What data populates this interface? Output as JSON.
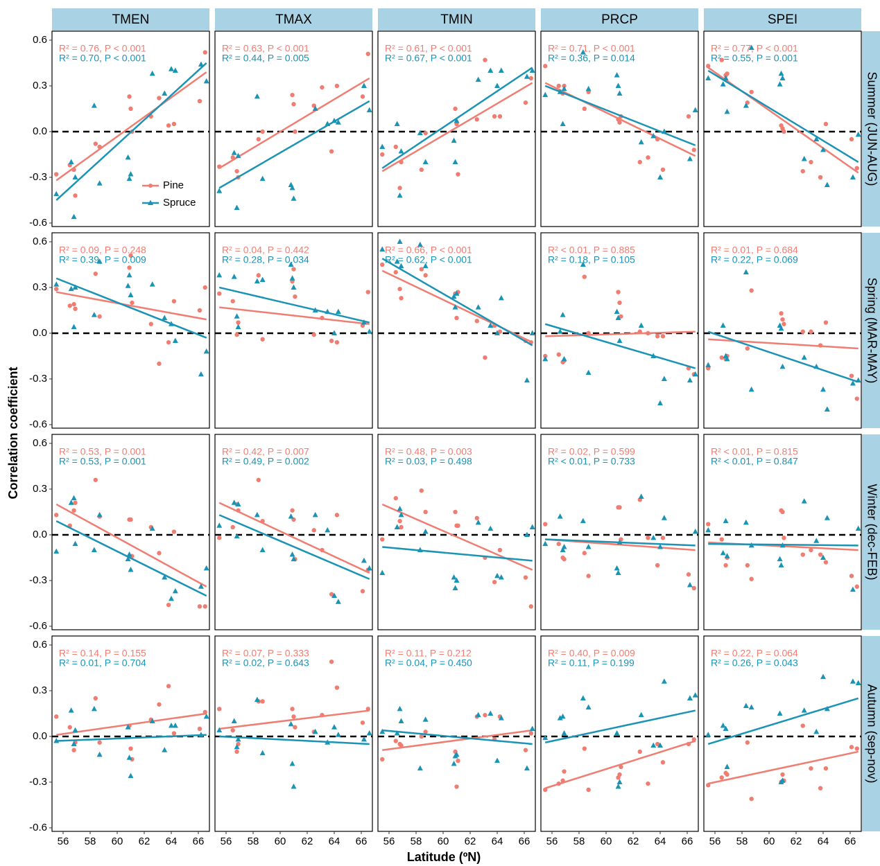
{
  "chart_data": {
    "type": "scatter",
    "x_label": "Latitude (ºN)",
    "y_label": "Correlation coefficient",
    "xlim": [
      55.18,
      66.82
    ],
    "xticks": [
      56,
      58,
      60,
      62,
      64,
      66
    ],
    "ylim": [
      -0.623,
      0.659
    ],
    "yticks": [
      -0.6,
      -0.3,
      {
        "value": 0,
        "label": "0.0"
      },
      0.3,
      0.6
    ],
    "hline": 0,
    "fit_x": [
      55.5,
      66.6
    ],
    "legend": "lower-left",
    "columns": [
      "TMEN",
      "TMAX",
      "TMIN",
      "PRCP",
      "SPEI"
    ],
    "rows": [
      "Summer (JUN-AUG)",
      "Spring (MAR-MAY)",
      "Winter (dec-FEB)",
      "Autumn (sep-nov)"
    ],
    "series": [
      {
        "name": "Pine",
        "color": "#f07d72",
        "x": [
          55.5,
          56.5,
          56.8,
          56.9,
          58.4,
          58.7,
          60.9,
          61.0,
          61.1,
          62.5,
          63.1,
          63.8,
          64.2,
          66.1,
          66.5
        ]
      },
      {
        "name": "Spruce",
        "color": "#1a93b4",
        "x": [
          55.5,
          56.6,
          56.8,
          56.9,
          58.3,
          58.7,
          60.8,
          60.9,
          61.0,
          62.6,
          63.5,
          64.0,
          64.3,
          66.2,
          66.6
        ]
      }
    ],
    "panels": [
      {
        "values": [
          [
            -0.28,
            -0.22,
            -0.25,
            -0.42,
            -0.08,
            -0.1,
            0.23,
            0.15,
            0.0,
            0.1,
            0.22,
            0.04,
            0.05,
            0.2,
            0.52
          ],
          [
            -0.41,
            -0.2,
            -0.56,
            -0.3,
            0.17,
            -0.34,
            -0.17,
            -0.31,
            -0.28,
            0.38,
            0.25,
            0.41,
            0.4,
            0.44,
            0.33
          ]
        ],
        "fit": [
          [
            -0.32,
            0.39
          ],
          [
            -0.45,
            0.45
          ]
        ],
        "stats": [
          "R² = 0.76, P < 0.001",
          "R² = 0.70, P < 0.001"
        ]
      },
      {
        "values": [
          [
            -0.23,
            -0.17,
            -0.26,
            -0.3,
            -0.05,
            0.0,
            0.24,
            0.18,
            0.0,
            0.17,
            0.29,
            -0.13,
            0.3,
            0.23,
            0.51
          ],
          [
            -0.39,
            -0.14,
            -0.5,
            -0.16,
            0.23,
            -0.31,
            -0.35,
            -0.37,
            -0.44,
            0.15,
            0.05,
            0.07,
            0.06,
            0.3,
            0.14
          ]
        ],
        "fit": [
          [
            -0.24,
            0.35
          ],
          [
            -0.37,
            0.2
          ]
        ],
        "stats": [
          "R² = 0.63, P < 0.001",
          "R² = 0.44, P = 0.005"
        ]
      },
      {
        "values": [
          [
            -0.15,
            -0.1,
            -0.37,
            -0.2,
            -0.25,
            -0.01,
            0.15,
            0.05,
            -0.28,
            0.08,
            0.47,
            0.1,
            0.1,
            0.19,
            0.35
          ],
          [
            -0.1,
            0.05,
            -0.42,
            -0.13,
            -0.01,
            -0.2,
            -0.06,
            -0.2,
            0.07,
            0.34,
            0.4,
            0.3,
            0.4,
            0.36,
            0.4
          ]
        ],
        "fit": [
          [
            -0.26,
            0.32
          ],
          [
            -0.24,
            0.42
          ]
        ],
        "stats": [
          "R² = 0.61, P < 0.001",
          "R² = 0.67, P < 0.001"
        ]
      },
      {
        "values": [
          [
            0.43,
            0.3,
            0.25,
            0.3,
            0.15,
            0.26,
            0.08,
            0.06,
            0.1,
            -0.2,
            -0.17,
            -0.05,
            -0.25,
            0.1,
            -0.12
          ],
          [
            0.24,
            0.26,
            0.05,
            0.28,
            0.52,
            0.28,
            0.37,
            0.3,
            0.25,
            -0.07,
            -0.03,
            -0.3,
            0.0,
            -0.18,
            0.14
          ]
        ],
        "fit": [
          [
            0.32,
            -0.16
          ],
          [
            0.3,
            -0.09
          ]
        ],
        "stats": [
          "R² = 0.71, P < 0.001",
          "R² = 0.36, P = 0.014"
        ]
      },
      {
        "values": [
          [
            0.43,
            0.47,
            0.37,
            0.38,
            0.19,
            0.26,
            0.04,
            0.02,
            0.0,
            -0.26,
            -0.2,
            -0.3,
            0.05,
            -0.05,
            -0.24
          ],
          [
            0.35,
            0.31,
            0.35,
            0.13,
            0.17,
            0.55,
            0.31,
            0.38,
            0.35,
            -0.18,
            -0.05,
            -0.12,
            -0.35,
            -0.3,
            -0.02
          ]
        ],
        "fit": [
          [
            0.42,
            -0.27
          ],
          [
            0.4,
            -0.2
          ]
        ],
        "stats": [
          "R² = 0.77, P < 0.001",
          "R² = 0.55, P = 0.001"
        ]
      },
      {
        "values": [
          [
            0.29,
            0.18,
            0.19,
            0.16,
            0.39,
            0.11,
            0.43,
            0.51,
            0.2,
            0.06,
            -0.2,
            -0.06,
            0.21,
            0.15,
            0.3
          ],
          [
            0.32,
            0.29,
            0.04,
            0.3,
            0.12,
            0.47,
            0.31,
            0.38,
            0.25,
            0.32,
            0.1,
            0.06,
            -0.05,
            -0.27,
            -0.12
          ]
        ],
        "fit": [
          [
            0.27,
            0.09
          ],
          [
            0.36,
            -0.03
          ]
        ],
        "stats": [
          "R² = 0.09, P = 0.248",
          "R² = 0.39, P = 0.009"
        ]
      },
      {
        "values": [
          [
            0.26,
            0.21,
            -0.01,
            0.07,
            0.38,
            -0.04,
            0.34,
            0.42,
            0.24,
            -0.01,
            0.1,
            -0.05,
            -0.06,
            0.05,
            0.27
          ],
          [
            0.38,
            0.37,
            0.11,
            0.04,
            0.34,
            0.35,
            0.45,
            0.36,
            0.3,
            0.15,
            0.14,
            0.0,
            0.14,
            0.07,
            0.01
          ]
        ],
        "fit": [
          [
            0.17,
            0.06
          ],
          [
            0.3,
            0.07
          ]
        ],
        "stats": [
          "R² = 0.04, P = 0.442",
          "R² = 0.28, P = 0.034"
        ]
      },
      {
        "values": [
          [
            0.45,
            0.4,
            0.29,
            0.23,
            0.42,
            0.38,
            0.26,
            0.1,
            0.27,
            0.08,
            -0.16,
            0.05,
            0.01,
            -0.05,
            -0.06
          ],
          [
            0.55,
            0.47,
            0.6,
            0.44,
            0.58,
            0.44,
            0.24,
            0.17,
            0.26,
            0.17,
            0.05,
            0.0,
            0.23,
            -0.31,
            0.0
          ]
        ],
        "fit": [
          [
            0.41,
            -0.06
          ],
          [
            0.49,
            -0.08
          ]
        ],
        "stats": [
          "R² = 0.66, P < 0.001",
          "R² = 0.62, P < 0.001"
        ]
      },
      {
        "values": [
          [
            -0.15,
            -0.14,
            -0.19,
            -0.18,
            0.37,
            0.0,
            0.27,
            0.2,
            0.11,
            0.01,
            0.0,
            -0.02,
            -0.02,
            -0.23,
            -0.27
          ],
          [
            -0.17,
            0.01,
            0.12,
            -0.17,
            0.45,
            -0.26,
            0.14,
            0.1,
            -0.05,
            0.05,
            -0.15,
            -0.46,
            -0.3,
            -0.31,
            -0.27
          ]
        ],
        "fit": [
          [
            -0.02,
            0.01
          ],
          [
            0.06,
            -0.23
          ]
        ],
        "stats": [
          "R² < 0.01, P = 0.885",
          "R² = 0.18, P = 0.105"
        ]
      },
      {
        "values": [
          [
            -0.23,
            -0.16,
            -0.17,
            -0.15,
            -0.1,
            0.28,
            0.13,
            0.09,
            0.06,
            0.01,
            0.01,
            -0.08,
            0.07,
            -0.28,
            -0.43
          ],
          [
            -0.21,
            0.05,
            -0.15,
            -0.17,
            0.4,
            -0.37,
            0.05,
            0.03,
            -0.22,
            -0.16,
            -0.22,
            -0.37,
            -0.5,
            -0.33,
            -0.31
          ]
        ],
        "fit": [
          [
            -0.04,
            -0.1
          ],
          [
            0.01,
            -0.32
          ]
        ],
        "stats": [
          "R² = 0.01, P = 0.684",
          "R² = 0.22, P = 0.069"
        ]
      },
      {
        "values": [
          [
            0.13,
            0.06,
            0.16,
            0.21,
            0.36,
            0.12,
            0.1,
            0.1,
            -0.14,
            0.05,
            -0.12,
            -0.46,
            0.02,
            -0.47,
            -0.47
          ],
          [
            -0.11,
            0.21,
            0.24,
            -0.06,
            -0.1,
            0.13,
            -0.16,
            -0.13,
            -0.23,
            0.04,
            -0.28,
            -0.42,
            -0.37,
            -0.34,
            -0.22
          ]
        ],
        "fit": [
          [
            0.2,
            -0.34
          ],
          [
            0.09,
            -0.4
          ]
        ],
        "stats": [
          "R² = 0.53, P = 0.001",
          "R² = 0.53, P = 0.001"
        ]
      },
      {
        "values": [
          [
            -0.02,
            0.05,
            0.2,
            0.16,
            0.36,
            0.09,
            0.16,
            0.1,
            -0.16,
            0.03,
            -0.1,
            -0.39,
            0.13,
            -0.37,
            -0.23
          ],
          [
            0.06,
            0.21,
            -0.01,
            0.2,
            0.13,
            -0.1,
            0.12,
            -0.13,
            -0.16,
            0.13,
            0.03,
            -0.4,
            -0.44,
            -0.17,
            -0.22
          ]
        ],
        "fit": [
          [
            0.21,
            -0.25
          ],
          [
            0.13,
            -0.29
          ]
        ],
        "stats": [
          "R² = 0.42, P = 0.007",
          "R² = 0.49, P = 0.002"
        ]
      },
      {
        "values": [
          [
            -0.03,
            0.24,
            0.09,
            0.05,
            0.29,
            0.15,
            0.15,
            0.06,
            0.06,
            0.11,
            -0.15,
            -0.31,
            -0.1,
            -0.28,
            -0.47
          ],
          [
            -0.25,
            0.05,
            0.17,
            0.13,
            -0.1,
            0.02,
            -0.28,
            -0.35,
            -0.3,
            0.08,
            0.04,
            -0.27,
            -0.28,
            0.0,
            0.05
          ]
        ],
        "fit": [
          [
            0.2,
            -0.23
          ],
          [
            -0.08,
            -0.17
          ]
        ],
        "stats": [
          "R² = 0.48, P = 0.003",
          "R² = 0.03, P = 0.498"
        ]
      },
      {
        "values": [
          [
            0.07,
            -0.06,
            -0.15,
            -0.16,
            -0.12,
            -0.27,
            0.18,
            0.18,
            -0.03,
            0.23,
            -0.02,
            -0.2,
            -0.02,
            -0.26,
            -0.35
          ],
          [
            -0.06,
            0.12,
            -0.1,
            -0.08,
            0.09,
            -0.08,
            -0.22,
            -0.25,
            -0.05,
            0.25,
            -0.02,
            -0.08,
            0.11,
            -0.33,
            0.02
          ]
        ],
        "fit": [
          [
            -0.03,
            -0.1
          ],
          [
            -0.03,
            -0.07
          ]
        ],
        "stats": [
          "R² = 0.02, P = 0.599",
          "R² < 0.01, P = 0.733"
        ]
      },
      {
        "values": [
          [
            0.07,
            -0.03,
            -0.2,
            -0.15,
            -0.2,
            -0.29,
            0.16,
            0.15,
            -0.02,
            -0.13,
            -0.1,
            -0.13,
            -0.18,
            -0.27,
            -0.34
          ],
          [
            0.03,
            -0.12,
            0.09,
            -0.14,
            0.08,
            -0.07,
            -0.16,
            -0.2,
            -0.07,
            0.22,
            -0.04,
            -0.15,
            0.11,
            -0.36,
            0.04
          ]
        ],
        "fit": [
          [
            -0.05,
            -0.1
          ],
          [
            -0.06,
            -0.07
          ]
        ],
        "stats": [
          "R² < 0.01, P = 0.815",
          "R² < 0.01, P = 0.847"
        ]
      },
      {
        "values": [
          [
            0.13,
            0.06,
            -0.09,
            -0.04,
            0.25,
            -0.04,
            0.07,
            -0.08,
            -0.15,
            0.11,
            0.21,
            0.33,
            0.02,
            0.05,
            0.16
          ],
          [
            -0.03,
            0.17,
            -0.05,
            0.04,
            0.18,
            -0.12,
            0.06,
            -0.14,
            -0.26,
            0.1,
            -0.09,
            0.07,
            0.07,
            0.01,
            0.13
          ]
        ],
        "fit": [
          [
            0.01,
            0.15
          ],
          [
            -0.03,
            0.01
          ]
        ],
        "stats": [
          "R² = 0.14, P = 0.155",
          "R² = 0.01, P = 0.704"
        ]
      },
      {
        "values": [
          [
            0.18,
            0.04,
            -0.1,
            -0.05,
            0.23,
            0.23,
            0.18,
            0.13,
            0.06,
            0.03,
            0.14,
            0.49,
            0.32,
            0.09,
            0.18
          ],
          [
            0.04,
            0.1,
            -0.07,
            -0.02,
            0.24,
            -0.11,
            0.08,
            -0.18,
            -0.33,
            0.03,
            -0.04,
            0.06,
            0.01,
            -0.02,
            0.02
          ]
        ],
        "fit": [
          [
            0.05,
            0.17
          ],
          [
            0.0,
            -0.05
          ]
        ],
        "stats": [
          "R² = 0.07, P = 0.333",
          "R² = 0.02, P = 0.643"
        ]
      },
      {
        "values": [
          [
            -0.15,
            -0.03,
            -0.05,
            -0.06,
            0.0,
            0.03,
            -0.1,
            -0.33,
            -0.16,
            0.13,
            0.14,
            -0.02,
            0.13,
            -0.09,
            0.02
          ],
          [
            0.03,
            0.02,
            0.18,
            0.1,
            -0.21,
            0.11,
            -0.18,
            -0.13,
            -0.12,
            0.14,
            0.15,
            -0.16,
            0.12,
            -0.21,
            0.05
          ]
        ],
        "fit": [
          [
            -0.09,
            0.04
          ],
          [
            0.04,
            -0.05
          ]
        ],
        "stats": [
          "R² = 0.11, P = 0.212",
          "R² = 0.04, P = 0.450"
        ]
      },
      {
        "values": [
          [
            -0.35,
            -0.31,
            -0.29,
            -0.23,
            -0.08,
            -0.35,
            -0.27,
            -0.25,
            -0.2,
            -0.1,
            -0.31,
            -0.05,
            -0.17,
            -0.05,
            -0.02
          ],
          [
            -0.01,
            0.12,
            0.13,
            0.02,
            0.25,
            0.19,
            0.02,
            -0.33,
            -0.3,
            0.14,
            -0.06,
            -0.06,
            0.36,
            0.25,
            0.27
          ]
        ],
        "fit": [
          [
            -0.34,
            -0.03
          ],
          [
            -0.04,
            0.17
          ]
        ],
        "stats": [
          "R² = 0.40, P = 0.009",
          "R² = 0.11, P = 0.199"
        ]
      },
      {
        "values": [
          [
            -0.32,
            -0.27,
            -0.24,
            -0.25,
            -0.04,
            -0.41,
            -0.3,
            -0.25,
            -0.29,
            0.07,
            -0.21,
            -0.34,
            -0.21,
            -0.07,
            -0.08
          ],
          [
            0.01,
            0.07,
            0.05,
            -0.2,
            0.2,
            0.19,
            0.15,
            -0.3,
            -0.29,
            0.17,
            0.03,
            0.39,
            0.18,
            0.36,
            0.35
          ]
        ],
        "fit": [
          [
            -0.31,
            -0.1
          ],
          [
            -0.05,
            0.25
          ]
        ],
        "stats": [
          "R² = 0.22, P = 0.064",
          "R² = 0.26, P = 0.043"
        ]
      }
    ]
  }
}
